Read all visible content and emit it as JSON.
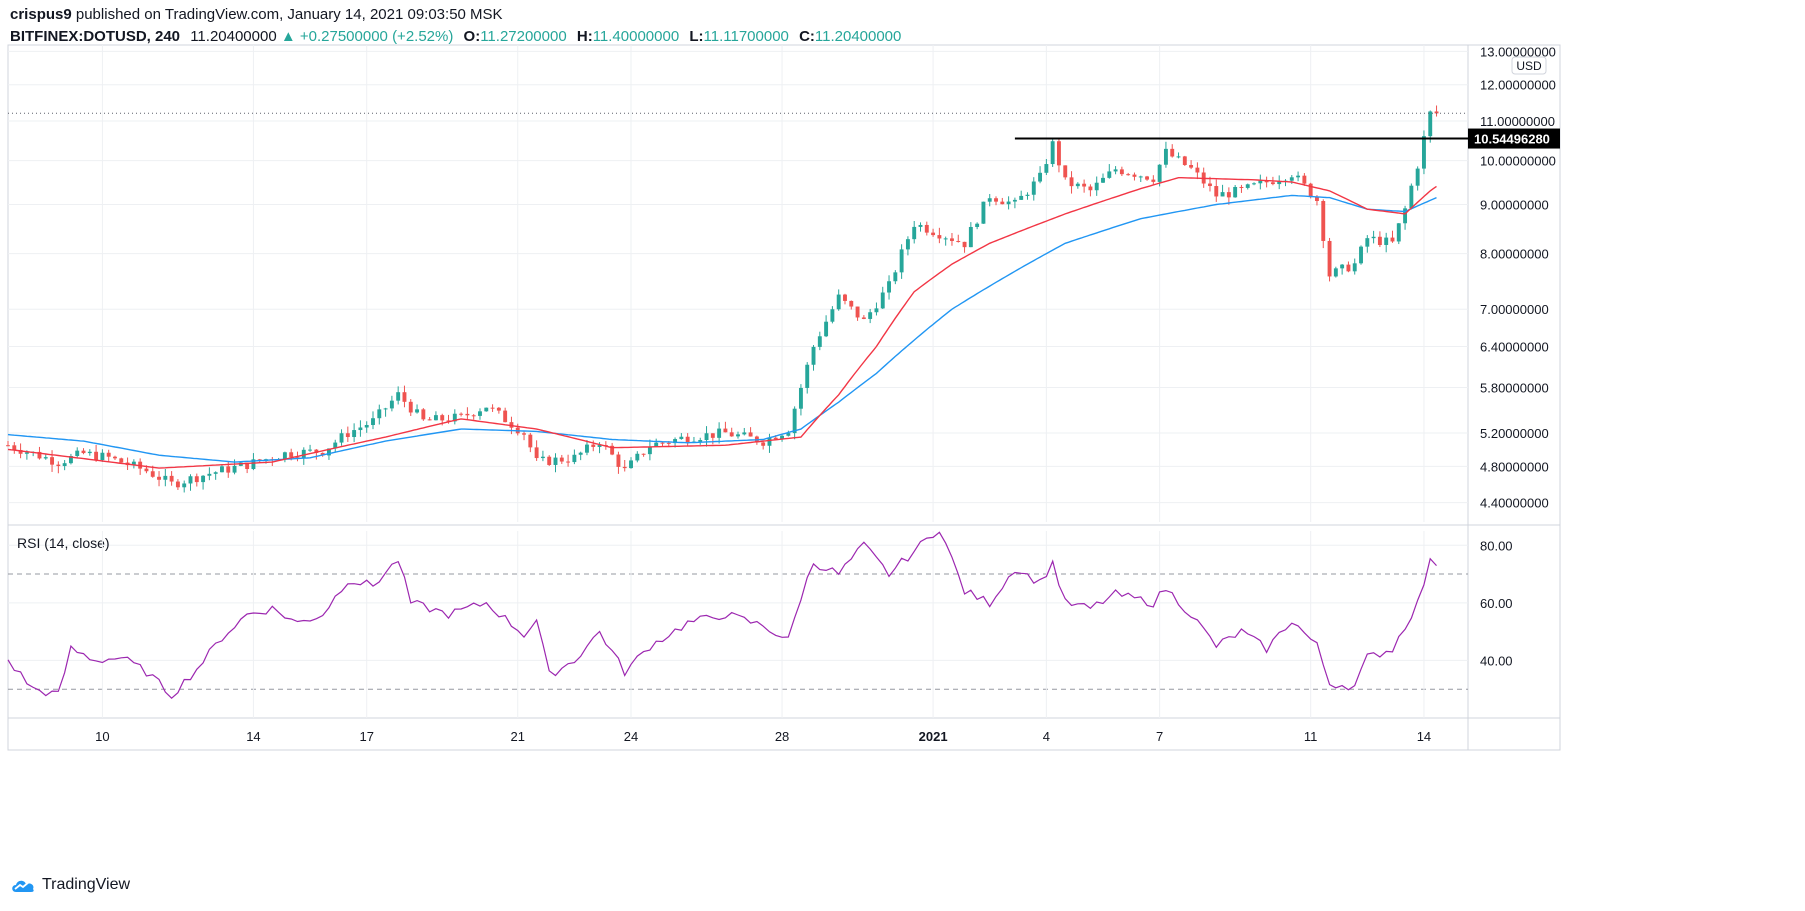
{
  "header": {
    "author": "crispus9",
    "published_text": "published on TradingView.com, January 14, 2021 09:03:50 MSK",
    "symbol": "BITFINEX:DOTUSD, 240",
    "last": "11.20400000",
    "change": "+0.27500000 (+2.52%)",
    "o_label": "O:",
    "o": "11.27200000",
    "h_label": "H:",
    "h": "11.40000000",
    "l_label": "L:",
    "l": "11.11700000",
    "c_label": "C:",
    "c": "11.20400000"
  },
  "footer": {
    "brand": "TradingView"
  },
  "colors": {
    "up": "#26a69a",
    "down": "#ef5350",
    "ma_fast": "#f23645",
    "ma_slow": "#2196f3",
    "rsi": "#9c27b0",
    "resistance": "#000000",
    "grid": "#eef0f3"
  },
  "chart_data": [
    {
      "type": "candlestick",
      "title": "BITFINEX:DOTUSD, 240",
      "currency_label": "USD",
      "y_scale": "log",
      "y_ticks": [
        "13.00000000",
        "12.00000000",
        "11.00000000",
        "10.00000000",
        "9.00000000",
        "8.00000000",
        "7.00000000",
        "6.40000000",
        "5.80000000",
        "5.20000000",
        "4.80000000",
        "4.40000000"
      ],
      "y_range": [
        4.2,
        13.2
      ],
      "x_tick_labels": [
        "10",
        "14",
        "17",
        "21",
        "24",
        "28",
        "2021",
        "4",
        "7",
        "11",
        "14"
      ],
      "x_tick_dates": [
        "2020-12-10",
        "2020-12-14",
        "2020-12-17",
        "2020-12-21",
        "2020-12-24",
        "2020-12-28",
        "2021-01-01",
        "2021-01-04",
        "2021-01-07",
        "2021-01-11",
        "2021-01-14"
      ],
      "x_range": [
        "2020-12-07T12:00",
        "2021-01-15T04:00"
      ],
      "close_anchors": [
        [
          "2020-12-07T12:00",
          5.05
        ],
        [
          "2020-12-08T20:00",
          4.85
        ],
        [
          "2020-12-09T12:00",
          4.95
        ],
        [
          "2020-12-10T04:00",
          4.9
        ],
        [
          "2020-12-11T04:00",
          4.75
        ],
        [
          "2020-12-11T20:00",
          4.6
        ],
        [
          "2020-12-12T20:00",
          4.72
        ],
        [
          "2020-12-13T20:00",
          4.82
        ],
        [
          "2020-12-14T20:00",
          4.95
        ],
        [
          "2020-12-15T20:00",
          4.98
        ],
        [
          "2020-12-16T12:00",
          5.2
        ],
        [
          "2020-12-17T04:00",
          5.35
        ],
        [
          "2020-12-17T20:00",
          5.7
        ],
        [
          "2020-12-18T12:00",
          5.35
        ],
        [
          "2020-12-19T12:00",
          5.4
        ],
        [
          "2020-12-20T04:00",
          5.55
        ],
        [
          "2020-12-21T04:00",
          5.2
        ],
        [
          "2020-12-21T12:00",
          4.85
        ],
        [
          "2020-12-22T12:00",
          4.9
        ],
        [
          "2020-12-23T04:00",
          5.1
        ],
        [
          "2020-12-23T20:00",
          4.75
        ],
        [
          "2020-12-24T12:00",
          5.05
        ],
        [
          "2020-12-25T12:00",
          5.15
        ],
        [
          "2020-12-26T12:00",
          5.2
        ],
        [
          "2020-12-27T12:00",
          5.1
        ],
        [
          "2020-12-28T04:00",
          5.25
        ],
        [
          "2020-12-28T12:00",
          5.8
        ],
        [
          "2020-12-28T20:00",
          6.4
        ],
        [
          "2020-12-29T12:00",
          7.2
        ],
        [
          "2020-12-30T04:00",
          6.8
        ],
        [
          "2020-12-30T20:00",
          7.4
        ],
        [
          "2020-12-31T12:00",
          8.6
        ],
        [
          "2021-01-01T04:00",
          8.4
        ],
        [
          "2021-01-01T20:00",
          8.2
        ],
        [
          "2021-01-02T12:00",
          9.2
        ],
        [
          "2021-01-03T04:00",
          9.0
        ],
        [
          "2021-01-03T20:00",
          9.6
        ],
        [
          "2021-01-04T04:00",
          10.4
        ],
        [
          "2021-01-04T12:00",
          9.5
        ],
        [
          "2021-01-05T04:00",
          9.3
        ],
        [
          "2021-01-05T20:00",
          9.8
        ],
        [
          "2021-01-06T20:00",
          9.6
        ],
        [
          "2021-01-07T04:00",
          10.2
        ],
        [
          "2021-01-07T20:00",
          9.8
        ],
        [
          "2021-01-08T12:00",
          9.2
        ],
        [
          "2021-01-09T04:00",
          9.3
        ],
        [
          "2021-01-09T20:00",
          9.5
        ],
        [
          "2021-01-10T12:00",
          9.7
        ],
        [
          "2021-01-11T04:00",
          9.1
        ],
        [
          "2021-01-11T12:00",
          7.6
        ],
        [
          "2021-01-12T04:00",
          7.8
        ],
        [
          "2021-01-12T12:00",
          8.3
        ],
        [
          "2021-01-13T04:00",
          8.2
        ],
        [
          "2021-01-13T12:00",
          8.9
        ],
        [
          "2021-01-13T20:00",
          9.9
        ],
        [
          "2021-01-14T04:00",
          11.2
        ],
        [
          "2021-01-14T08:00",
          11.2
        ]
      ],
      "ma_fast_anchors": [
        [
          "2020-12-07T12:00",
          5.0
        ],
        [
          "2020-12-11T12:00",
          4.78
        ],
        [
          "2020-12-14T12:00",
          4.85
        ],
        [
          "2020-12-17T12:00",
          5.15
        ],
        [
          "2020-12-19T12:00",
          5.38
        ],
        [
          "2020-12-21T12:00",
          5.25
        ],
        [
          "2020-12-23T12:00",
          5.02
        ],
        [
          "2020-12-26T12:00",
          5.05
        ],
        [
          "2020-12-28T12:00",
          5.15
        ],
        [
          "2020-12-29T12:00",
          5.7
        ],
        [
          "2020-12-30T12:00",
          6.4
        ],
        [
          "2020-12-31T12:00",
          7.3
        ],
        [
          "2021-01-01T12:00",
          7.8
        ],
        [
          "2021-01-02T12:00",
          8.2
        ],
        [
          "2021-01-04T12:00",
          8.8
        ],
        [
          "2021-01-06T12:00",
          9.35
        ],
        [
          "2021-01-07T12:00",
          9.6
        ],
        [
          "2021-01-09T12:00",
          9.55
        ],
        [
          "2021-01-10T12:00",
          9.5
        ],
        [
          "2021-01-11T12:00",
          9.3
        ],
        [
          "2021-01-12T12:00",
          8.9
        ],
        [
          "2021-01-13T12:00",
          8.8
        ],
        [
          "2021-01-14T04:00",
          9.3
        ],
        [
          "2021-01-14T08:00",
          9.4
        ]
      ],
      "ma_slow_anchors": [
        [
          "2020-12-07T12:00",
          5.18
        ],
        [
          "2020-12-09T12:00",
          5.1
        ],
        [
          "2020-12-11T12:00",
          4.93
        ],
        [
          "2020-12-13T12:00",
          4.85
        ],
        [
          "2020-12-15T12:00",
          4.9
        ],
        [
          "2020-12-17T12:00",
          5.1
        ],
        [
          "2020-12-19T12:00",
          5.25
        ],
        [
          "2020-12-21T12:00",
          5.22
        ],
        [
          "2020-12-23T12:00",
          5.12
        ],
        [
          "2020-12-25T12:00",
          5.08
        ],
        [
          "2020-12-27T12:00",
          5.12
        ],
        [
          "2020-12-28T12:00",
          5.25
        ],
        [
          "2020-12-29T12:00",
          5.6
        ],
        [
          "2020-12-30T12:00",
          6.0
        ],
        [
          "2020-12-31T12:00",
          6.5
        ],
        [
          "2021-01-01T12:00",
          7.0
        ],
        [
          "2021-01-02T12:00",
          7.4
        ],
        [
          "2021-01-03T12:00",
          7.8
        ],
        [
          "2021-01-04T12:00",
          8.2
        ],
        [
          "2021-01-06T12:00",
          8.7
        ],
        [
          "2021-01-08T12:00",
          9.0
        ],
        [
          "2021-01-10T12:00",
          9.2
        ],
        [
          "2021-01-11T12:00",
          9.15
        ],
        [
          "2021-01-12T12:00",
          8.9
        ],
        [
          "2021-01-13T12:00",
          8.85
        ],
        [
          "2021-01-14T08:00",
          9.15
        ]
      ],
      "last_price": 11.204,
      "resistance": {
        "label": "10.54496280",
        "value": 10.5449628,
        "from": "2021-01-03T04:00",
        "to": "2021-01-15T04:00"
      }
    },
    {
      "type": "line",
      "title": "RSI (14, close)",
      "y_ticks": [
        "80.00",
        "60.00",
        "40.00"
      ],
      "y_range": [
        20,
        86
      ],
      "bands": [
        70,
        30
      ],
      "anchors": [
        [
          "2020-12-07T12:00",
          40
        ],
        [
          "2020-12-08T04:00",
          30
        ],
        [
          "2020-12-08T20:00",
          28
        ],
        [
          "2020-12-09T04:00",
          44
        ],
        [
          "2020-12-09T20:00",
          40
        ],
        [
          "2020-12-10T12:00",
          41
        ],
        [
          "2020-12-11T04:00",
          36
        ],
        [
          "2020-12-11T20:00",
          28
        ],
        [
          "2020-12-12T12:00",
          37
        ],
        [
          "2020-12-13T04:00",
          48
        ],
        [
          "2020-12-13T20:00",
          56
        ],
        [
          "2020-12-14T12:00",
          58
        ],
        [
          "2020-12-15T04:00",
          53
        ],
        [
          "2020-12-15T20:00",
          56
        ],
        [
          "2020-12-16T12:00",
          68
        ],
        [
          "2020-12-17T04:00",
          66
        ],
        [
          "2020-12-17T20:00",
          75
        ],
        [
          "2020-12-18T04:00",
          60
        ],
        [
          "2020-12-19T04:00",
          56
        ],
        [
          "2020-12-20T04:00",
          60
        ],
        [
          "2020-12-21T04:00",
          49
        ],
        [
          "2020-12-21T12:00",
          54
        ],
        [
          "2020-12-21T20:00",
          35
        ],
        [
          "2020-12-22T12:00",
          40
        ],
        [
          "2020-12-23T04:00",
          50
        ],
        [
          "2020-12-23T20:00",
          36
        ],
        [
          "2020-12-24T12:00",
          45
        ],
        [
          "2020-12-25T12:00",
          53
        ],
        [
          "2020-12-26T12:00",
          56
        ],
        [
          "2020-12-27T12:00",
          52
        ],
        [
          "2020-12-28T04:00",
          47
        ],
        [
          "2020-12-28T12:00",
          62
        ],
        [
          "2020-12-28T20:00",
          74
        ],
        [
          "2020-12-29T12:00",
          70
        ],
        [
          "2020-12-30T04:00",
          80
        ],
        [
          "2020-12-30T20:00",
          70
        ],
        [
          "2020-12-31T12:00",
          78
        ],
        [
          "2021-01-01T04:00",
          86
        ],
        [
          "2021-01-01T20:00",
          64
        ],
        [
          "2021-01-02T12:00",
          60
        ],
        [
          "2021-01-03T04:00",
          72
        ],
        [
          "2021-01-03T20:00",
          67
        ],
        [
          "2021-01-04T04:00",
          74
        ],
        [
          "2021-01-04T12:00",
          60
        ],
        [
          "2021-01-05T04:00",
          58
        ],
        [
          "2021-01-05T20:00",
          63
        ],
        [
          "2021-01-06T20:00",
          60
        ],
        [
          "2021-01-07T04:00",
          65
        ],
        [
          "2021-01-07T20:00",
          56
        ],
        [
          "2021-01-08T12:00",
          45
        ],
        [
          "2021-01-09T04:00",
          50
        ],
        [
          "2021-01-09T20:00",
          44
        ],
        [
          "2021-01-10T12:00",
          54
        ],
        [
          "2021-01-11T04:00",
          45
        ],
        [
          "2021-01-11T12:00",
          32
        ],
        [
          "2021-01-12T04:00",
          31
        ],
        [
          "2021-01-12T12:00",
          41
        ],
        [
          "2021-01-13T04:00",
          44
        ],
        [
          "2021-01-13T12:00",
          52
        ],
        [
          "2021-01-13T20:00",
          60
        ],
        [
          "2021-01-14T04:00",
          74
        ],
        [
          "2021-01-14T08:00",
          74
        ]
      ]
    }
  ]
}
